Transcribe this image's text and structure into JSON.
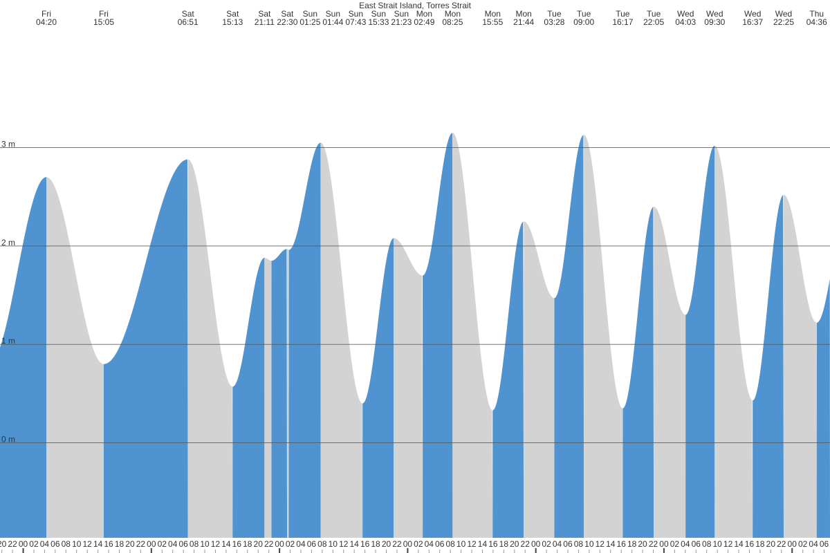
{
  "chart_data": {
    "type": "tide",
    "title": "East Strait Island, Torres Strait",
    "events": [
      {
        "day": "Fri",
        "time": "04:20",
        "height": 2.7
      },
      {
        "day": "Fri",
        "time": "15:05",
        "height": 0.8
      },
      {
        "day": "Sat",
        "time": "06:51",
        "height": 2.88
      },
      {
        "day": "Sat",
        "time": "15:13",
        "height": 0.57
      },
      {
        "day": "Sat",
        "time": "21:11",
        "height": 1.88
      },
      {
        "day": "Sat",
        "time": "22:30",
        "height": 1.85
      },
      {
        "day": "Sun",
        "time": "01:25",
        "height": 1.97
      },
      {
        "day": "Sun",
        "time": "01:44",
        "height": 1.96
      },
      {
        "day": "Sun",
        "time": "07:43",
        "height": 3.05
      },
      {
        "day": "Sun",
        "time": "15:33",
        "height": 0.4
      },
      {
        "day": "Sun",
        "time": "21:23",
        "height": 2.08
      },
      {
        "day": "Mon",
        "time": "02:49",
        "height": 1.7
      },
      {
        "day": "Mon",
        "time": "08:25",
        "height": 3.15
      },
      {
        "day": "Mon",
        "time": "15:55",
        "height": 0.33
      },
      {
        "day": "Mon",
        "time": "21:44",
        "height": 2.25
      },
      {
        "day": "Tue",
        "time": "03:28",
        "height": 1.47
      },
      {
        "day": "Tue",
        "time": "09:00",
        "height": 3.13
      },
      {
        "day": "Tue",
        "time": "16:17",
        "height": 0.35
      },
      {
        "day": "Tue",
        "time": "22:05",
        "height": 2.4
      },
      {
        "day": "Wed",
        "time": "04:03",
        "height": 1.3
      },
      {
        "day": "Wed",
        "time": "09:30",
        "height": 3.02
      },
      {
        "day": "Wed",
        "time": "16:37",
        "height": 0.43
      },
      {
        "day": "Wed",
        "time": "22:25",
        "height": 2.52
      },
      {
        "day": "Thu",
        "time": "04:36",
        "height": 1.22
      }
    ],
    "hour_labels": [
      "20",
      "22",
      "00",
      "02",
      "04",
      "06",
      "08",
      "10",
      "12",
      "14",
      "16",
      "18",
      "20",
      "22",
      "00",
      "02",
      "04",
      "06",
      "08",
      "10",
      "12",
      "14",
      "16",
      "18",
      "20",
      "22",
      "00",
      "02",
      "04",
      "06",
      "08",
      "10",
      "12",
      "14",
      "16",
      "18",
      "20",
      "22",
      "00",
      "02",
      "04",
      "06",
      "08",
      "10",
      "12",
      "14",
      "16",
      "18",
      "20",
      "22",
      "00",
      "02",
      "04",
      "06",
      "08",
      "10",
      "12",
      "14",
      "16",
      "18",
      "20",
      "22",
      "00",
      "02",
      "04",
      "06",
      "08",
      "10",
      "12",
      "14",
      "16",
      "18",
      "20",
      "22",
      "00",
      "02",
      "04",
      "06"
    ],
    "ylim": [
      -1.05,
      4.5
    ],
    "yticks": [
      {
        "value": 0,
        "label": "0 m"
      },
      {
        "value": 1,
        "label": "1 m"
      },
      {
        "value": 2,
        "label": "2 m"
      },
      {
        "value": 3,
        "label": "3 m"
      }
    ],
    "rising_color": "#4f94d0",
    "falling_color": "#d3d3d3",
    "grid": true
  }
}
